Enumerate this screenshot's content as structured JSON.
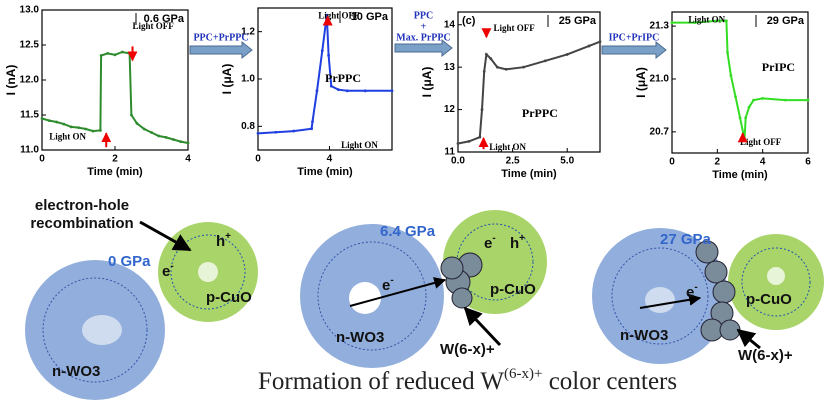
{
  "chart_data": [
    {
      "type": "line",
      "title": "0.6 GPa",
      "ylabel": "I (nA)",
      "xlabel": "Time (min)",
      "color": "#2e8b2e",
      "x": [
        0,
        0.2,
        0.4,
        0.6,
        0.8,
        1.0,
        1.2,
        1.4,
        1.6,
        1.62,
        1.8,
        2.0,
        2.2,
        2.4,
        2.45,
        2.6,
        2.8,
        3.0,
        3.2,
        3.4,
        3.6,
        3.8,
        4.0
      ],
      "values": [
        11.45,
        11.42,
        11.4,
        11.37,
        11.33,
        11.32,
        11.3,
        11.27,
        11.28,
        12.35,
        12.38,
        12.36,
        12.4,
        12.38,
        11.5,
        11.38,
        11.3,
        11.25,
        11.2,
        11.18,
        11.15,
        11.12,
        11.1
      ],
      "xlim": [
        0,
        4
      ],
      "xticks": [
        0,
        2,
        4
      ],
      "ylim": [
        11.0,
        13.0
      ],
      "yticks": [
        {
          "value": 11,
          "label": "11.0"
        },
        {
          "value": 11.5,
          "label": "11.5"
        },
        {
          "value": 12,
          "label": "12.0"
        },
        {
          "value": 12.5,
          "label": "12.5"
        },
        {
          "value": 13,
          "label": "13.0"
        }
      ],
      "annotations": [
        "Light OFF",
        "Light ON"
      ]
    },
    {
      "type": "line",
      "title": "10 GPa",
      "ylabel": "I (μA)",
      "xlabel": "Time (min)",
      "color": "#1f3fe0",
      "x": [
        0,
        1,
        2,
        3,
        3.05,
        3.3,
        3.6,
        3.85,
        3.95,
        4.1,
        4.5,
        5,
        6,
        7.5
      ],
      "values": [
        0.77,
        0.775,
        0.78,
        0.79,
        0.82,
        0.95,
        1.12,
        1.27,
        1.1,
        0.97,
        0.955,
        0.95,
        0.95,
        0.95
      ],
      "xlim": [
        0,
        7.5
      ],
      "xticks": [
        0,
        4
      ],
      "ylim": [
        0.7,
        1.3
      ],
      "yticks": [
        0.8,
        {
          "value": 1,
          "label": "1.0"
        },
        1.2
      ],
      "annotations": [
        "Light OFF",
        "Light ON",
        "PrPPC"
      ]
    },
    {
      "type": "line",
      "title": "25 GPa",
      "panel": "(c)",
      "ylabel": "I (μA)",
      "xlabel": "Time (min)",
      "color": "#444444",
      "x": [
        0,
        0.5,
        1.0,
        1.1,
        1.2,
        1.3,
        1.5,
        1.8,
        2.2,
        3,
        4,
        5,
        6,
        6.5
      ],
      "values": [
        11.2,
        11.25,
        11.35,
        12.0,
        12.9,
        13.3,
        13.2,
        13.0,
        12.95,
        13.0,
        13.15,
        13.3,
        13.5,
        13.6
      ],
      "xlim": [
        0,
        6.5
      ],
      "xticks": [
        {
          "value": 0,
          "label": "0.0"
        },
        2.5,
        {
          "value": 5,
          "label": "5.0"
        }
      ],
      "ylim": [
        11.0,
        14.3
      ],
      "yticks": [
        11,
        12,
        13,
        14
      ],
      "annotations": [
        "Light OFF",
        "Light ON",
        "PrPPC"
      ]
    },
    {
      "type": "line",
      "title": "29 GPa",
      "ylabel": "I (μA)",
      "xlabel": "Time (min)",
      "color": "#33dd22",
      "x": [
        0,
        1,
        2,
        2.4,
        2.45,
        2.6,
        2.8,
        3.0,
        3.2,
        3.25,
        3.4,
        3.6,
        4,
        5,
        6
      ],
      "values": [
        21.32,
        21.32,
        21.33,
        21.33,
        21.15,
        21.02,
        20.9,
        20.78,
        20.66,
        20.78,
        20.84,
        20.88,
        20.89,
        20.88,
        20.88
      ],
      "xlim": [
        0,
        6
      ],
      "xticks": [
        0,
        2,
        4,
        6
      ],
      "ylim": [
        20.58,
        21.38
      ],
      "yticks": [
        20.7,
        {
          "value": 21,
          "label": "21.0"
        },
        21.3
      ],
      "annotations": [
        "Light ON",
        "Light OFF",
        "PrIPC"
      ]
    }
  ],
  "transitions": [
    [
      "PPC+PrPPC"
    ],
    [
      "PPC",
      "+",
      "Max. PrPPC"
    ],
    [
      "IPC+PrIPC"
    ]
  ],
  "diagram": {
    "recombination": [
      "electron-hole",
      "recombination"
    ],
    "pressures": [
      "0 GPa",
      "6.4 GPa",
      "27 GPa"
    ],
    "n_label": "n-WO3",
    "p_label": "p-CuO",
    "electron": {
      "base": "e",
      "sup": "-"
    },
    "hole": {
      "base": "h",
      "sup": "+"
    },
    "defect": "W(6-x)+",
    "caption": {
      "base": "Formation of reduced W",
      "sup": "(6-x)+",
      "rest": " color centers"
    }
  }
}
